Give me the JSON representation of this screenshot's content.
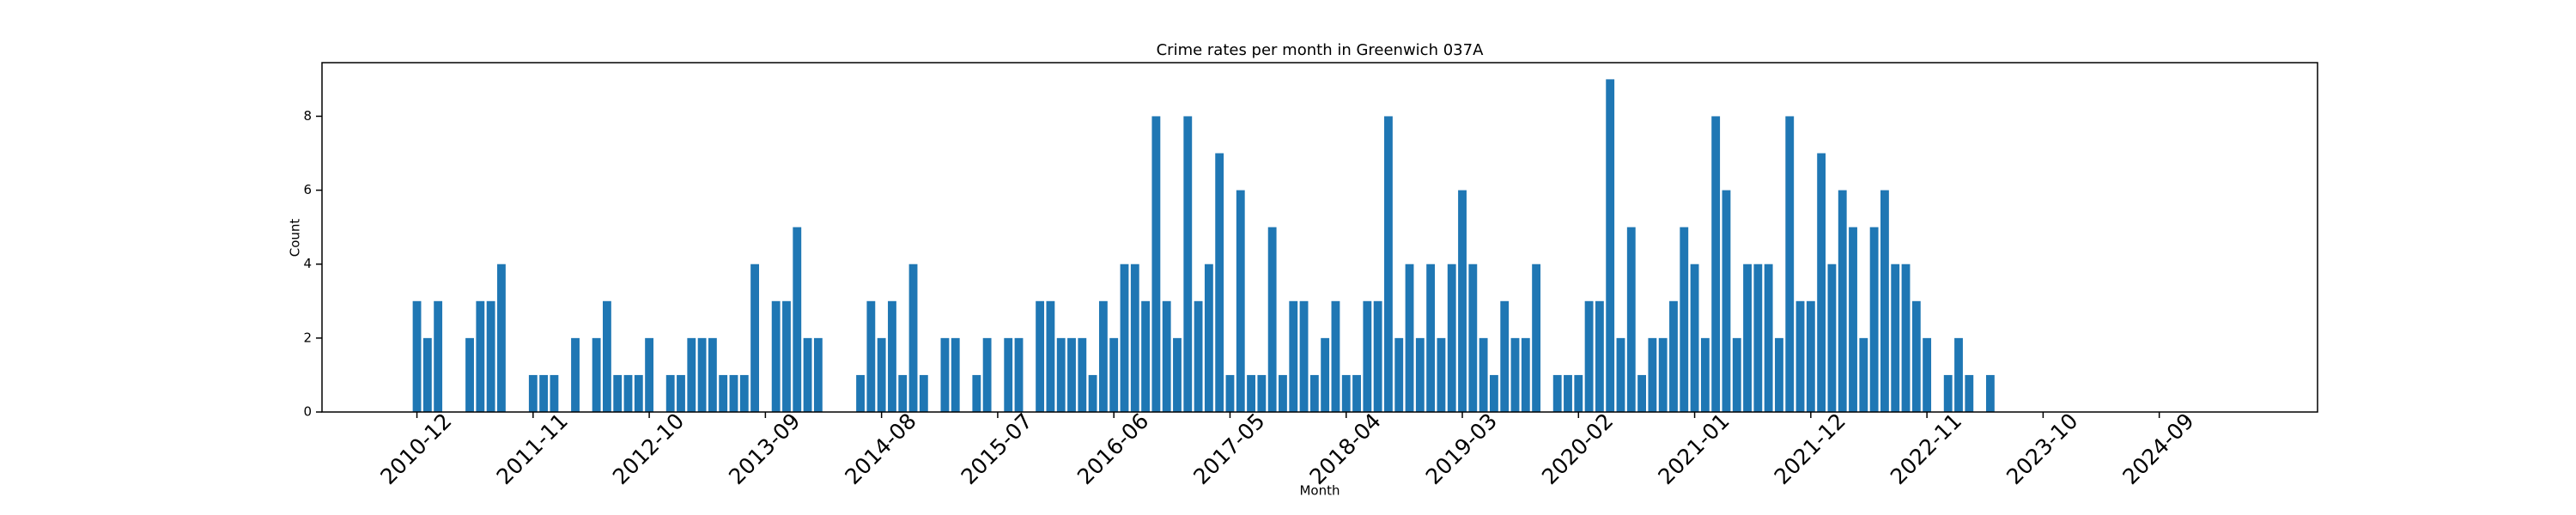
{
  "chart_data": {
    "type": "bar",
    "title": "Crime rates per month in Greenwich 037A",
    "xlabel": "Month",
    "ylabel": "Count",
    "color": "#1f77b4",
    "categories": [
      "2010-12",
      null,
      null,
      null,
      null,
      null,
      null,
      null,
      null,
      null,
      null,
      "2011-11",
      null,
      null,
      null,
      null,
      null,
      null,
      null,
      null,
      null,
      null,
      "2012-10",
      null,
      null,
      null,
      null,
      null,
      null,
      null,
      null,
      null,
      null,
      "2013-09",
      null,
      null,
      null,
      null,
      null,
      null,
      null,
      null,
      null,
      null,
      "2014-08",
      null,
      null,
      null,
      null,
      null,
      null,
      null,
      null,
      null,
      null,
      "2015-07",
      null,
      null,
      null,
      null,
      null,
      null,
      null,
      null,
      null,
      null,
      "2016-06",
      null,
      null,
      null,
      null,
      null,
      null,
      null,
      null,
      null,
      null,
      "2017-05",
      null,
      null,
      null,
      null,
      null,
      null,
      null,
      null,
      null,
      null,
      "2018-04",
      null,
      null,
      null,
      null,
      null,
      null,
      null,
      null,
      null,
      null,
      "2019-03",
      null,
      null,
      null,
      null,
      null,
      null,
      null,
      null,
      null,
      null,
      "2020-02",
      null,
      null,
      null,
      null,
      null,
      null,
      null,
      null,
      null,
      null,
      "2021-01",
      null,
      null,
      null,
      null,
      null,
      null,
      null,
      null,
      null,
      null,
      "2021-12",
      null,
      null,
      null,
      null,
      null,
      null,
      null,
      null,
      null,
      null,
      "2022-11",
      null,
      null,
      null,
      null,
      null,
      null,
      null,
      null,
      null,
      null,
      "2023-10",
      null,
      null,
      null,
      null,
      null,
      null,
      null,
      null,
      null,
      null,
      "2024-09",
      null,
      null,
      null,
      null,
      null,
      null
    ],
    "values": [
      3,
      2,
      3,
      0,
      0,
      2,
      3,
      3,
      4,
      0,
      0,
      1,
      1,
      1,
      0,
      2,
      0,
      2,
      3,
      1,
      1,
      1,
      2,
      0,
      1,
      1,
      2,
      2,
      2,
      1,
      1,
      1,
      4,
      0,
      3,
      3,
      5,
      2,
      2,
      0,
      0,
      0,
      1,
      3,
      2,
      3,
      1,
      4,
      1,
      0,
      2,
      2,
      0,
      1,
      2,
      0,
      2,
      2,
      0,
      3,
      3,
      2,
      2,
      2,
      1,
      3,
      2,
      4,
      4,
      3,
      8,
      3,
      2,
      8,
      3,
      4,
      7,
      1,
      6,
      1,
      1,
      5,
      1,
      3,
      3,
      1,
      2,
      3,
      1,
      1,
      3,
      3,
      8,
      2,
      4,
      2,
      4,
      2,
      4,
      6,
      4,
      2,
      1,
      3,
      2,
      2,
      4,
      0,
      1,
      1,
      1,
      3,
      3,
      9,
      2,
      5,
      1,
      2,
      2,
      3,
      5,
      4,
      2,
      8,
      6,
      2,
      4,
      4,
      4,
      2,
      8,
      3,
      3,
      7,
      4,
      6,
      5,
      2,
      5,
      6,
      4,
      4,
      3,
      2,
      0,
      1,
      2,
      1,
      0,
      1,
      0,
      0,
      0,
      0,
      0,
      0,
      0,
      0,
      0,
      0,
      0,
      0,
      0,
      0,
      0,
      0,
      0,
      0,
      0,
      0,
      0,
      0
    ],
    "ylim": [
      0,
      9.45
    ],
    "yticks": [
      0,
      2,
      4,
      6,
      8
    ]
  }
}
